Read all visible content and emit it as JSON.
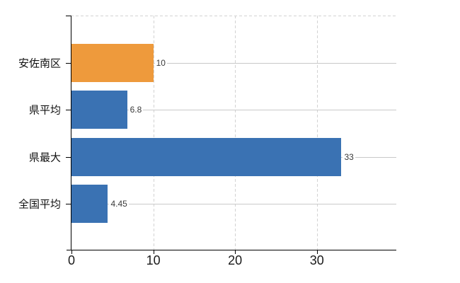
{
  "chart_data": {
    "type": "bar",
    "orientation": "horizontal",
    "title": "",
    "xlabel": "",
    "ylabel": "",
    "categories": [
      "安佐南区",
      "県平均",
      "県最大",
      "全国平均"
    ],
    "values": [
      10,
      6.8,
      33,
      4.45
    ],
    "value_labels": [
      "10",
      "6.8",
      "33",
      "4.45"
    ],
    "bar_colors": [
      "#EE9A3C",
      "#3A72B3",
      "#3A72B3",
      "#3A72B3"
    ],
    "x_ticks": [
      "0",
      "10",
      "20",
      "30"
    ],
    "x_tick_values": [
      0,
      10,
      20,
      30
    ],
    "xlim": [
      0,
      39.7
    ],
    "legend": false,
    "grid": {
      "vertical_lines": "dashed at each x tick",
      "horizontal_lines": "solid at each category center",
      "top_border": "dashed"
    }
  },
  "colors": {
    "bar_blue": "#3A72B3",
    "bar_orange": "#EE9A3C",
    "grid_solid": "#c9c9c9",
    "grid_dashed": "#d2d2d2",
    "axis": "#000000",
    "category_text": "#111111",
    "tick_text": "#1a1a1a",
    "value_text": "#3a3a3a",
    "background": "#ffffff"
  }
}
